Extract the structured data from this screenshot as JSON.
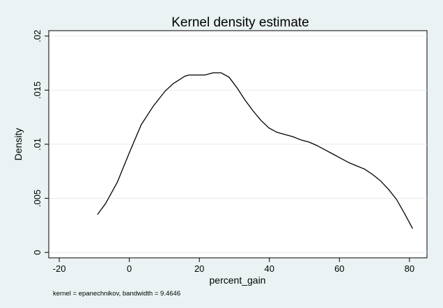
{
  "chart_data": {
    "type": "line",
    "title": "Kernel density estimate",
    "xlabel": "percent_gain",
    "ylabel": "Density",
    "note": "kernel = epanechnikov, bandwidth = 9.4646",
    "xlim": [
      -23,
      85
    ],
    "ylim": [
      -0.0005,
      0.0205
    ],
    "x_ticks": [
      -20,
      0,
      20,
      40,
      60,
      80
    ],
    "x_tick_labels": [
      "-20",
      "0",
      "20",
      "40",
      "60",
      "80"
    ],
    "y_ticks": [
      0,
      0.005,
      0.01,
      0.015,
      0.02
    ],
    "y_tick_labels": [
      "0",
      ".005",
      ".01",
      ".015",
      ".02"
    ],
    "grid": true,
    "colors": {
      "outer_background": "#eaf2f3",
      "plot_background": "#ffffff",
      "line": "#000000",
      "grid": "#e6ecee"
    },
    "series": [
      {
        "x": [
          -9.1,
          -6.8,
          -3.4,
          0.0,
          3.4,
          6.8,
          10.2,
          12.5,
          15.9,
          17.1,
          19.4,
          21.6,
          23.9,
          26.2,
          28.5,
          30.8,
          33.0,
          35.3,
          37.6,
          39.9,
          42.2,
          44.4,
          46.7,
          49.0,
          51.3,
          53.5,
          55.8,
          58.1,
          60.4,
          62.7,
          64.9,
          67.2,
          69.5,
          71.8,
          74.1,
          76.3,
          78.6,
          80.9
        ],
        "y": [
          0.0035,
          0.0045,
          0.0065,
          0.0092,
          0.0118,
          0.0135,
          0.0149,
          0.0156,
          0.0163,
          0.0164,
          0.0164,
          0.0164,
          0.0166,
          0.0166,
          0.0162,
          0.0152,
          0.0141,
          0.0131,
          0.0122,
          0.0115,
          0.0111,
          0.0109,
          0.0107,
          0.0104,
          0.0102,
          0.0099,
          0.0095,
          0.0091,
          0.0087,
          0.0083,
          0.008,
          0.0077,
          0.0072,
          0.0066,
          0.0058,
          0.0049,
          0.0036,
          0.0022
        ]
      }
    ]
  }
}
